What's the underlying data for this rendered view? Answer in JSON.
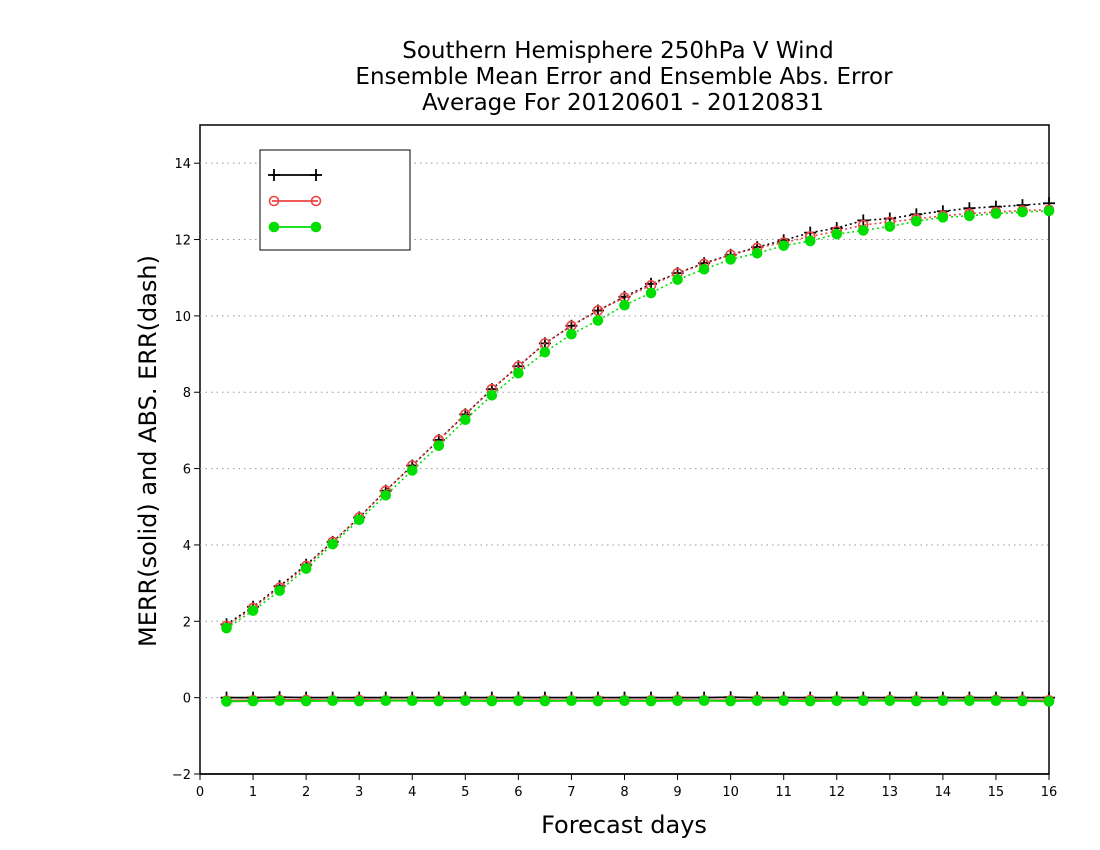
{
  "chart_data": {
    "type": "line",
    "title_lines": [
      "Southern Hemisphere 250hPa V Wind",
      "Ensemble Mean Error and Ensemble Abs. Error",
      "Average For 20120601 - 20120831"
    ],
    "xlabel": "Forecast days",
    "ylabel": "MERR(solid) and ABS. ERR(dash)",
    "xlim": [
      0,
      16
    ],
    "ylim": [
      -2,
      15
    ],
    "xticks": [
      0,
      1,
      2,
      3,
      4,
      5,
      6,
      7,
      8,
      9,
      10,
      11,
      12,
      13,
      14,
      15,
      16
    ],
    "yticks": [
      -2,
      0,
      2,
      4,
      6,
      8,
      10,
      12,
      14
    ],
    "grid": "horizontal dotted",
    "legend_position": "top-left",
    "x": [
      0.5,
      1,
      1.5,
      2,
      2.5,
      3,
      3.5,
      4,
      4.5,
      5,
      5.5,
      6,
      6.5,
      7,
      7.5,
      8,
      8.5,
      9,
      9.5,
      10,
      10.5,
      11,
      11.5,
      12,
      12.5,
      13,
      13.5,
      14,
      14.5,
      15,
      15.5,
      16
    ],
    "series": [
      {
        "name": "",
        "color": "#000000",
        "marker": "plus",
        "abs_error": [
          1.92,
          2.38,
          2.92,
          3.48,
          4.08,
          4.72,
          5.42,
          6.08,
          6.75,
          7.42,
          8.08,
          8.68,
          9.28,
          9.74,
          10.14,
          10.5,
          10.84,
          11.12,
          11.38,
          11.6,
          11.8,
          11.98,
          12.18,
          12.3,
          12.5,
          12.55,
          12.66,
          12.74,
          12.82,
          12.86,
          12.9,
          12.95
        ],
        "mean_error": [
          0,
          0,
          0.01,
          0,
          0,
          0,
          0,
          0,
          0,
          0,
          0,
          0,
          0,
          0,
          0,
          0,
          0,
          0,
          0,
          0.01,
          0,
          0,
          0,
          0,
          0,
          0,
          0,
          0,
          0,
          0,
          0,
          0
        ]
      },
      {
        "name": "",
        "color": "#ee4444",
        "marker": "open-circle",
        "abs_error": [
          1.88,
          2.35,
          2.88,
          3.45,
          4.08,
          4.72,
          5.42,
          6.08,
          6.75,
          7.42,
          8.08,
          8.68,
          9.28,
          9.74,
          10.14,
          10.48,
          10.8,
          11.12,
          11.36,
          11.6,
          11.78,
          11.92,
          12.08,
          12.22,
          12.38,
          12.46,
          12.54,
          12.62,
          12.68,
          12.72,
          12.76,
          12.78
        ],
        "mean_error": [
          -0.08,
          -0.07,
          -0.06,
          -0.06,
          -0.07,
          -0.06,
          -0.07,
          -0.07,
          -0.07,
          -0.07,
          -0.07,
          -0.07,
          -0.07,
          -0.07,
          -0.07,
          -0.07,
          -0.07,
          -0.06,
          -0.07,
          -0.07,
          -0.06,
          -0.07,
          -0.06,
          -0.07,
          -0.07,
          -0.06,
          -0.07,
          -0.07,
          -0.06,
          -0.06,
          -0.07,
          -0.07
        ]
      },
      {
        "name": "",
        "color": "#00dd00",
        "marker": "filled-circle",
        "abs_error": [
          1.82,
          2.28,
          2.8,
          3.38,
          4.02,
          4.66,
          5.3,
          5.95,
          6.6,
          7.28,
          7.92,
          8.5,
          9.05,
          9.52,
          9.88,
          10.28,
          10.6,
          10.95,
          11.22,
          11.48,
          11.64,
          11.84,
          11.96,
          12.14,
          12.24,
          12.34,
          12.48,
          12.58,
          12.62,
          12.68,
          12.72,
          12.75
        ],
        "mean_error": [
          -0.1,
          -0.09,
          -0.08,
          -0.09,
          -0.08,
          -0.09,
          -0.08,
          -0.08,
          -0.09,
          -0.08,
          -0.09,
          -0.08,
          -0.09,
          -0.08,
          -0.09,
          -0.08,
          -0.09,
          -0.08,
          -0.08,
          -0.09,
          -0.08,
          -0.08,
          -0.09,
          -0.08,
          -0.08,
          -0.08,
          -0.09,
          -0.08,
          -0.08,
          -0.08,
          -0.09,
          -0.1
        ]
      }
    ]
  }
}
